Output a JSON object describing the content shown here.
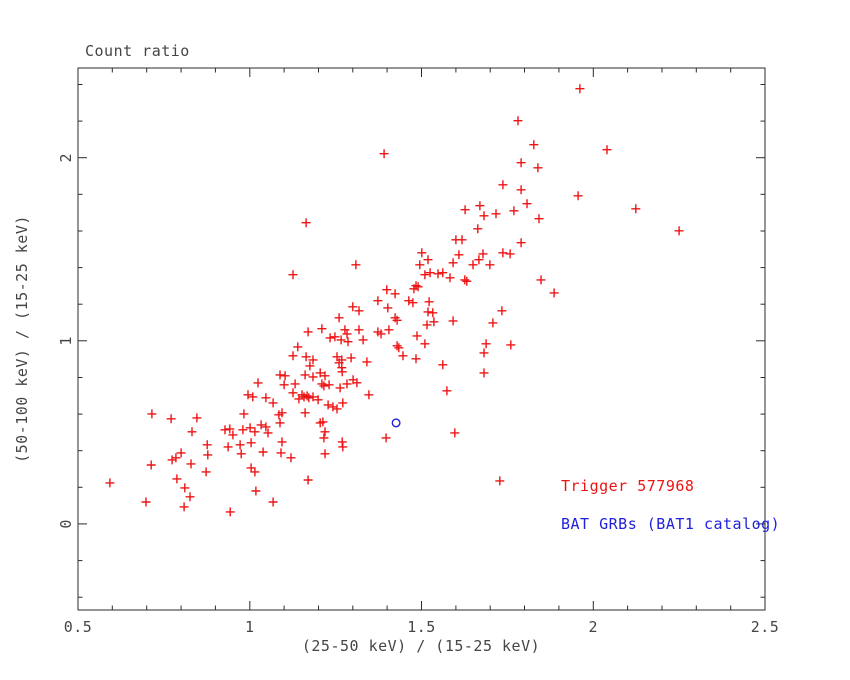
{
  "colors": {
    "background": "#ffffff",
    "axis": "#2b2b2b",
    "text": "#454545",
    "trigger_red": "#ee1414",
    "catalog_blue": "#2020dd"
  },
  "chart_data": {
    "type": "scatter",
    "title": "Count ratio",
    "xlabel": "(25-50 keV) / (15-25 keV)",
    "ylabel": "(50-100 keV) / (15-25 keV)",
    "xlim": [
      0.5,
      2.5
    ],
    "ylim": [
      -0.47,
      2.49
    ],
    "x_major_ticks": [
      0.5,
      1,
      1.5,
      2,
      2.5
    ],
    "x_tick_labels": [
      "0.5",
      "1",
      "1.5",
      "2",
      "2.5"
    ],
    "x_minor_step": 0.1,
    "y_major_ticks": [
      0,
      1,
      2
    ],
    "y_tick_labels": [
      "0",
      "1",
      "2"
    ],
    "y_minor_step": 0.2,
    "grid": false,
    "legend": {
      "position": "inside-bottom-right",
      "entries": [
        {
          "label": "Trigger 577968",
          "color": "#ee1414"
        },
        {
          "label": "BAT GRBs (BAT1 catalog)",
          "color": "#2020dd"
        }
      ]
    },
    "series": [
      {
        "name": "Trigger 577968",
        "marker": "plus",
        "color": "#ee1414",
        "points": [
          [
            1.164,
            1.645
          ],
          [
            1.391,
            2.022
          ],
          [
            1.781,
            2.202
          ],
          [
            1.827,
            2.071
          ],
          [
            1.79,
            1.973
          ],
          [
            1.839,
            1.945
          ],
          [
            1.737,
            1.852
          ],
          [
            1.79,
            1.825
          ],
          [
            1.807,
            1.749
          ],
          [
            1.627,
            1.716
          ],
          [
            1.67,
            1.738
          ],
          [
            1.682,
            1.683
          ],
          [
            1.717,
            1.694
          ],
          [
            1.769,
            1.71
          ],
          [
            1.842,
            1.667
          ],
          [
            1.664,
            1.612
          ],
          [
            1.6,
            1.552
          ],
          [
            1.618,
            1.552
          ],
          [
            1.79,
            1.536
          ],
          [
            1.961,
            2.377
          ],
          [
            2.04,
            2.044
          ],
          [
            1.956,
            1.792
          ],
          [
            2.124,
            1.721
          ],
          [
            2.25,
            1.601
          ],
          [
            1.126,
            1.361
          ],
          [
            1.17,
            1.049
          ],
          [
            1.14,
            0.967
          ],
          [
            1.126,
            0.918
          ],
          [
            1.164,
            0.913
          ],
          [
            1.175,
            0.863
          ],
          [
            1.024,
            0.77
          ],
          [
            0.995,
            0.705
          ],
          [
            1.009,
            0.694
          ],
          [
            1.047,
            0.689
          ],
          [
            0.715,
            0.601
          ],
          [
            0.771,
            0.574
          ],
          [
            0.846,
            0.579
          ],
          [
            0.832,
            0.503
          ],
          [
            0.983,
            0.601
          ],
          [
            0.928,
            0.514
          ],
          [
            0.942,
            0.519
          ],
          [
            0.951,
            0.486
          ],
          [
            0.98,
            0.514
          ],
          [
            1.001,
            0.525
          ],
          [
            1.015,
            0.503
          ],
          [
            1.033,
            0.541
          ],
          [
            1.047,
            0.53
          ],
          [
            1.053,
            0.497
          ],
          [
            1.088,
            0.814
          ],
          [
            1.103,
            0.809
          ],
          [
            1.161,
            0.814
          ],
          [
            1.184,
            0.803
          ],
          [
            1.205,
            0.825
          ],
          [
            1.219,
            0.809
          ],
          [
            1.269,
            0.831
          ],
          [
            1.301,
            0.787
          ],
          [
            1.283,
            0.765
          ],
          [
            1.1,
            0.76
          ],
          [
            1.132,
            0.765
          ],
          [
            1.21,
            0.765
          ],
          [
            1.216,
            0.754
          ],
          [
            1.231,
            0.76
          ],
          [
            1.263,
            0.743
          ],
          [
            1.312,
            0.771
          ],
          [
            1.126,
            0.716
          ],
          [
            1.152,
            0.705
          ],
          [
            1.158,
            0.694
          ],
          [
            1.167,
            0.699
          ],
          [
            1.143,
            0.683
          ],
          [
            1.172,
            0.689
          ],
          [
            1.184,
            0.694
          ],
          [
            1.199,
            0.678
          ],
          [
            1.228,
            0.65
          ],
          [
            1.242,
            0.639
          ],
          [
            1.271,
            0.661
          ],
          [
            1.068,
            0.661
          ],
          [
            1.094,
            0.607
          ],
          [
            1.085,
            0.596
          ],
          [
            1.161,
            0.607
          ],
          [
            1.213,
            0.557
          ],
          [
            1.205,
            0.552
          ],
          [
            1.254,
            0.628
          ],
          [
            1.088,
            0.552
          ],
          [
            1.219,
            0.503
          ],
          [
            1.216,
            0.47
          ],
          [
            1.094,
            0.448
          ],
          [
            1.269,
            0.448
          ],
          [
            1.501,
            1.481
          ],
          [
            1.519,
            1.443
          ],
          [
            1.592,
            1.426
          ],
          [
            1.609,
            1.47
          ],
          [
            1.65,
            1.415
          ],
          [
            1.667,
            1.443
          ],
          [
            1.679,
            1.475
          ],
          [
            1.699,
            1.415
          ],
          [
            1.737,
            1.481
          ],
          [
            1.758,
            1.475
          ],
          [
            1.309,
            1.415
          ],
          [
            1.495,
            1.415
          ],
          [
            1.51,
            1.361
          ],
          [
            1.525,
            1.372
          ],
          [
            1.548,
            1.366
          ],
          [
            1.562,
            1.372
          ],
          [
            1.583,
            1.344
          ],
          [
            1.626,
            1.333
          ],
          [
            1.632,
            1.325
          ],
          [
            1.848,
            1.333
          ],
          [
            1.484,
            1.301
          ],
          [
            1.478,
            1.284
          ],
          [
            1.49,
            1.295
          ],
          [
            1.399,
            1.279
          ],
          [
            1.423,
            1.257
          ],
          [
            1.463,
            1.219
          ],
          [
            1.475,
            1.208
          ],
          [
            1.522,
            1.213
          ],
          [
            1.373,
            1.219
          ],
          [
            1.402,
            1.18
          ],
          [
            1.3,
            1.186
          ],
          [
            1.318,
            1.164
          ],
          [
            1.26,
            1.126
          ],
          [
            1.423,
            1.126
          ],
          [
            1.429,
            1.112
          ],
          [
            1.519,
            1.158
          ],
          [
            1.533,
            1.153
          ],
          [
            1.734,
            1.164
          ],
          [
            1.708,
            1.098
          ],
          [
            1.592,
            1.109
          ],
          [
            1.516,
            1.087
          ],
          [
            1.536,
            1.104
          ],
          [
            1.21,
            1.066
          ],
          [
            1.234,
            1.016
          ],
          [
            1.248,
            1.022
          ],
          [
            1.277,
            1.06
          ],
          [
            1.283,
            1.038
          ],
          [
            1.318,
            1.06
          ],
          [
            1.373,
            1.049
          ],
          [
            1.382,
            1.038
          ],
          [
            1.405,
            1.06
          ],
          [
            1.487,
            1.027
          ],
          [
            1.266,
            1.005
          ],
          [
            1.286,
            0.995
          ],
          [
            1.33,
            1.005
          ],
          [
            1.51,
            0.984
          ],
          [
            1.688,
            0.984
          ],
          [
            1.682,
            0.934
          ],
          [
            1.76,
            0.978
          ],
          [
            1.254,
            0.913
          ],
          [
            1.268,
            0.896
          ],
          [
            1.26,
            0.88
          ],
          [
            1.184,
            0.896
          ],
          [
            1.295,
            0.907
          ],
          [
            1.341,
            0.885
          ],
          [
            1.268,
            0.853
          ],
          [
            1.429,
            0.973
          ],
          [
            1.434,
            0.962
          ],
          [
            1.446,
            0.918
          ],
          [
            1.484,
            0.902
          ],
          [
            1.562,
            0.869
          ],
          [
            1.682,
            0.825
          ],
          [
            1.347,
            0.705
          ],
          [
            1.574,
            0.727
          ],
          [
            1.397,
            0.47
          ],
          [
            1.597,
            0.497
          ],
          [
            1.886,
            1.262
          ],
          [
            0.593,
            0.224
          ],
          [
            0.698,
            0.12
          ],
          [
            0.713,
            0.322
          ],
          [
            0.774,
            0.35
          ],
          [
            0.785,
            0.361
          ],
          [
            0.8,
            0.388
          ],
          [
            0.788,
            0.246
          ],
          [
            0.811,
            0.197
          ],
          [
            0.826,
            0.148
          ],
          [
            0.809,
            0.093
          ],
          [
            0.829,
            0.328
          ],
          [
            0.876,
            0.432
          ],
          [
            0.878,
            0.377
          ],
          [
            0.873,
            0.284
          ],
          [
            0.937,
            0.421
          ],
          [
            0.975,
            0.383
          ],
          [
            0.972,
            0.432
          ],
          [
            1.004,
            0.443
          ],
          [
            1.039,
            0.393
          ],
          [
            1.004,
            0.306
          ],
          [
            1.015,
            0.284
          ],
          [
            1.018,
            0.18
          ],
          [
            1.068,
            0.12
          ],
          [
            0.943,
            0.066
          ],
          [
            1.091,
            0.388
          ],
          [
            1.12,
            0.361
          ],
          [
            1.17,
            0.24
          ],
          [
            1.271,
            0.421
          ],
          [
            1.219,
            0.383
          ],
          [
            1.728,
            0.235
          ]
        ]
      },
      {
        "name": "BAT GRBs (BAT1 catalog)",
        "marker": "open-circle",
        "color": "#2020dd",
        "points": [
          [
            1.426,
            0.552
          ]
        ]
      }
    ]
  }
}
